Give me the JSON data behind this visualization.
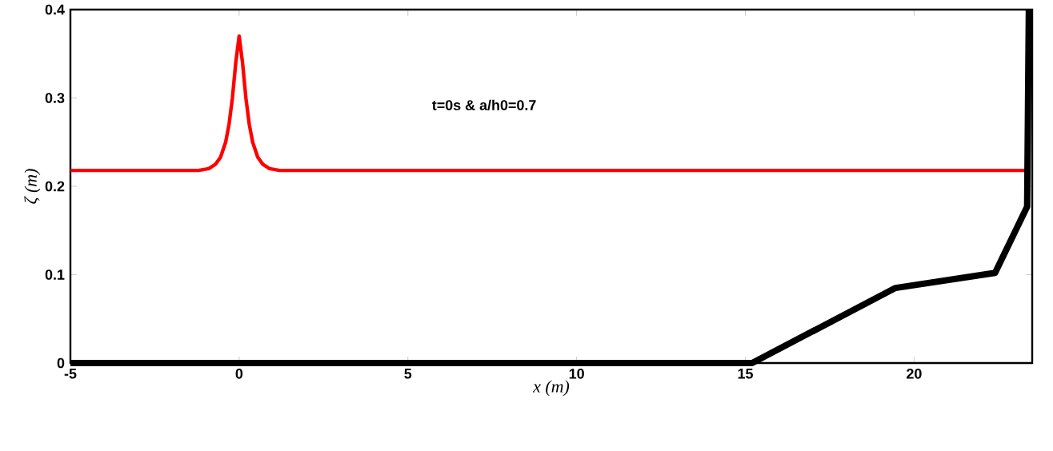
{
  "chart_data": {
    "type": "line",
    "xlabel": "x (m)",
    "ylabel": "ζ (m)",
    "annotations": [
      "t=0s & a/h0=0.7"
    ],
    "xlim": [
      -5,
      23.5
    ],
    "ylim": [
      0,
      0.4
    ],
    "xticks": [
      -5,
      0,
      5,
      10,
      15,
      20
    ],
    "yticks": [
      0,
      0.1,
      0.2,
      0.3,
      0.4
    ],
    "grid": false,
    "marker": "none",
    "line_style": "solid",
    "series": [
      {
        "color": "#ff0000",
        "x": [
          -5,
          -1.2,
          -0.9,
          -0.7,
          -0.55,
          -0.4,
          -0.3,
          -0.2,
          -0.1,
          0,
          0.1,
          0.2,
          0.3,
          0.4,
          0.55,
          0.7,
          0.9,
          1.2,
          23.3
        ],
        "values": [
          0.218,
          0.218,
          0.22,
          0.225,
          0.233,
          0.25,
          0.27,
          0.3,
          0.34,
          0.37,
          0.34,
          0.3,
          0.27,
          0.25,
          0.233,
          0.225,
          0.22,
          0.218,
          0.218
        ]
      },
      {
        "color": "#000000",
        "x": [
          -5,
          15.2,
          19.45,
          22.4,
          23.35,
          23.4
        ],
        "values": [
          0,
          0,
          0.085,
          0.102,
          0.177,
          0.4
        ]
      }
    ]
  }
}
